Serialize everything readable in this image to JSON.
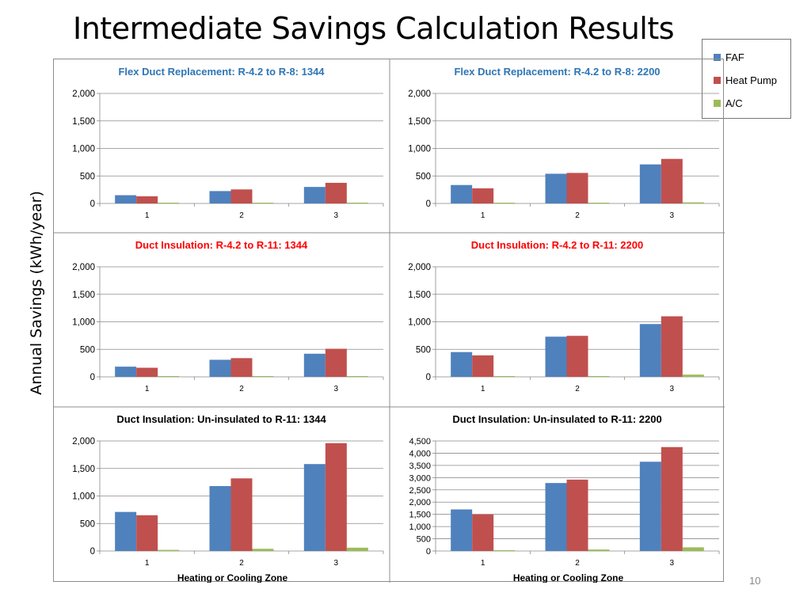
{
  "slide": {
    "title": "Intermediate Savings Calculation Results",
    "y_axis_label": "Annual Savings (kWh/year)",
    "page_number": "10"
  },
  "legend": [
    {
      "name": "FAF",
      "color": "#4f81bd"
    },
    {
      "name": "Heat Pump",
      "color": "#c0504d"
    },
    {
      "name": "A/C",
      "color": "#9bbb59"
    }
  ],
  "chart_data": [
    {
      "type": "bar",
      "title": "Flex Duct Replacement: R-4.2 to R-8: 1344",
      "title_color": "#2e75b6",
      "categories": [
        "1",
        "2",
        "3"
      ],
      "ticks": [
        "0",
        "500",
        "1,000",
        "1,500",
        "2,000"
      ],
      "ylim": [
        0,
        2000
      ],
      "xlabel": "",
      "series": [
        {
          "name": "FAF",
          "values": [
            150,
            225,
            300
          ]
        },
        {
          "name": "Heat Pump",
          "values": [
            130,
            255,
            375
          ]
        },
        {
          "name": "A/C",
          "values": [
            10,
            12,
            15
          ]
        }
      ]
    },
    {
      "type": "bar",
      "title": "Flex Duct Replacement: R-4.2 to R-8: 2200",
      "title_color": "#2e75b6",
      "categories": [
        "1",
        "2",
        "3"
      ],
      "ticks": [
        "0",
        "500",
        "1,000",
        "1,500",
        "2,000"
      ],
      "ylim": [
        0,
        2000
      ],
      "xlabel": "",
      "series": [
        {
          "name": "FAF",
          "values": [
            335,
            540,
            710
          ]
        },
        {
          "name": "Heat Pump",
          "values": [
            275,
            555,
            810
          ]
        },
        {
          "name": "A/C",
          "values": [
            5,
            10,
            20
          ]
        }
      ]
    },
    {
      "type": "bar",
      "title": "Duct Insulation: R-4.2 to R-11: 1344",
      "title_color": "#ff0000",
      "categories": [
        "1",
        "2",
        "3"
      ],
      "ticks": [
        "0",
        "500",
        "1,000",
        "1,500",
        "2,000"
      ],
      "ylim": [
        0,
        2000
      ],
      "xlabel": "",
      "series": [
        {
          "name": "FAF",
          "values": [
            185,
            310,
            420
          ]
        },
        {
          "name": "Heat Pump",
          "values": [
            165,
            340,
            510
          ]
        },
        {
          "name": "A/C",
          "values": [
            5,
            8,
            10
          ]
        }
      ]
    },
    {
      "type": "bar",
      "title": "Duct Insulation: R-4.2 to R-11: 2200",
      "title_color": "#ff0000",
      "categories": [
        "1",
        "2",
        "3"
      ],
      "ticks": [
        "0",
        "500",
        "1,000",
        "1,500",
        "2,000"
      ],
      "ylim": [
        0,
        2000
      ],
      "xlabel": "",
      "series": [
        {
          "name": "FAF",
          "values": [
            450,
            730,
            960
          ]
        },
        {
          "name": "Heat Pump",
          "values": [
            390,
            745,
            1100
          ]
        },
        {
          "name": "A/C",
          "values": [
            8,
            12,
            40
          ]
        }
      ]
    },
    {
      "type": "bar",
      "title": "Duct Insulation: Un-insulated to R-11: 1344",
      "title_color": "#000000",
      "categories": [
        "1",
        "2",
        "3"
      ],
      "ticks": [
        "0",
        "500",
        "1,000",
        "1,500",
        "2,000"
      ],
      "ylim": [
        0,
        2000
      ],
      "xlabel": "Heating or Cooling Zone",
      "series": [
        {
          "name": "FAF",
          "values": [
            710,
            1180,
            1580
          ]
        },
        {
          "name": "Heat Pump",
          "values": [
            650,
            1320,
            1960
          ]
        },
        {
          "name": "A/C",
          "values": [
            20,
            40,
            60
          ]
        }
      ]
    },
    {
      "type": "bar",
      "title": "Duct Insulation: Un-insulated to R-11: 2200",
      "title_color": "#000000",
      "categories": [
        "1",
        "2",
        "3"
      ],
      "ticks": [
        "0",
        "500",
        "1,000",
        "1,500",
        "2,000",
        "2,500",
        "3,000",
        "3,500",
        "4,000",
        "4,500"
      ],
      "ylim": [
        0,
        4500
      ],
      "xlabel": "Heating or Cooling Zone",
      "series": [
        {
          "name": "FAF",
          "values": [
            1700,
            2780,
            3650
          ]
        },
        {
          "name": "Heat Pump",
          "values": [
            1500,
            2920,
            4250
          ]
        },
        {
          "name": "A/C",
          "values": [
            20,
            60,
            150
          ]
        }
      ]
    }
  ]
}
